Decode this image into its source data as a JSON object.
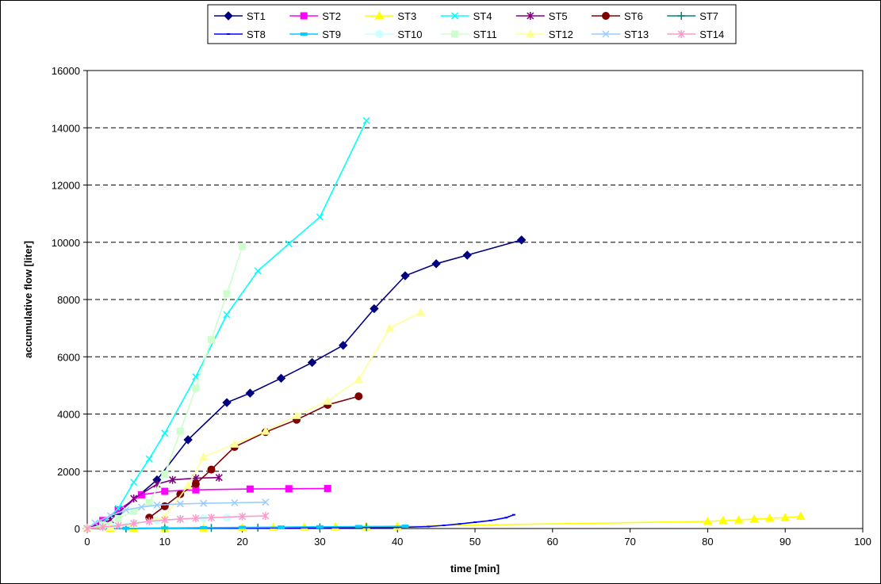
{
  "chart_data": {
    "type": "line",
    "title": "",
    "xlabel": "time [min]",
    "ylabel": "accumulative flow [liter]",
    "xlim": [
      0,
      100
    ],
    "ylim": [
      0,
      16000
    ],
    "x_ticks": [
      0,
      10,
      20,
      30,
      40,
      50,
      60,
      70,
      80,
      90,
      100
    ],
    "y_ticks": [
      0,
      2000,
      4000,
      6000,
      8000,
      10000,
      12000,
      14000,
      16000
    ],
    "grid": "horizontal dashed",
    "legend_position": "top",
    "series": [
      {
        "name": "ST1",
        "color": "#000080",
        "marker": "diamond",
        "x": [
          0,
          2,
          4,
          9,
          13,
          18,
          21,
          25,
          29,
          33,
          37,
          41,
          45,
          49,
          56
        ],
        "y": [
          0,
          250,
          550,
          1700,
          3100,
          4400,
          4730,
          5250,
          5800,
          6400,
          7680,
          8830,
          9250,
          9550,
          10080
        ]
      },
      {
        "name": "ST2",
        "color": "#FF00FF",
        "marker": "square",
        "x": [
          0,
          2,
          4,
          7,
          10,
          14,
          21,
          26,
          31
        ],
        "y": [
          0,
          280,
          650,
          1180,
          1300,
          1350,
          1380,
          1390,
          1400
        ]
      },
      {
        "name": "ST3",
        "color": "#FFFF00",
        "marker": "triangle",
        "x": [
          0,
          3,
          6,
          10,
          15,
          20,
          24,
          28,
          32,
          36,
          40,
          80,
          82,
          84,
          86,
          88,
          90,
          92
        ],
        "y": [
          0,
          0,
          0,
          0,
          20,
          30,
          40,
          50,
          60,
          70,
          80,
          250,
          280,
          300,
          330,
          360,
          380,
          430
        ]
      },
      {
        "name": "ST4",
        "color": "#00FFFF",
        "marker": "x",
        "x": [
          0,
          2,
          4,
          6,
          8,
          10,
          14,
          18,
          22,
          26,
          30,
          36
        ],
        "y": [
          0,
          200,
          700,
          1620,
          2430,
          3330,
          5300,
          7470,
          9000,
          9950,
          10880,
          14250
        ]
      },
      {
        "name": "ST5",
        "color": "#800080",
        "marker": "star",
        "x": [
          0,
          3,
          6,
          9,
          11,
          14,
          17
        ],
        "y": [
          0,
          300,
          1050,
          1550,
          1700,
          1760,
          1780
        ]
      },
      {
        "name": "ST6",
        "color": "#800000",
        "marker": "circle",
        "x": [
          8,
          10,
          12,
          14,
          16,
          19,
          23,
          27,
          31,
          35
        ],
        "y": [
          380,
          780,
          1200,
          1560,
          2060,
          2850,
          3370,
          3800,
          4320,
          4620
        ]
      },
      {
        "name": "ST7",
        "color": "#008080",
        "marker": "plus",
        "x": [
          0,
          5,
          10,
          16,
          22,
          30,
          36
        ],
        "y": [
          0,
          0,
          10,
          20,
          30,
          40,
          50
        ]
      },
      {
        "name": "ST8",
        "color": "#0000FF",
        "marker": "dash",
        "x": [
          0,
          10,
          20,
          30,
          40,
          44,
          46,
          48,
          50,
          52,
          54,
          55
        ],
        "y": [
          0,
          10,
          20,
          30,
          40,
          70,
          110,
          160,
          220,
          280,
          380,
          480
        ]
      },
      {
        "name": "ST9",
        "color": "#00CCFF",
        "marker": "bar",
        "x": [
          0,
          5,
          10,
          15,
          20,
          25,
          30,
          35,
          41
        ],
        "y": [
          0,
          10,
          20,
          30,
          40,
          50,
          60,
          70,
          80
        ]
      },
      {
        "name": "ST10",
        "color": "#CCFFFF",
        "marker": "circle",
        "x": [
          0,
          3,
          6,
          9,
          12,
          15,
          18
        ],
        "y": [
          0,
          100,
          200,
          280,
          330,
          360,
          380
        ]
      },
      {
        "name": "ST11",
        "color": "#CCFFCC",
        "marker": "square",
        "x": [
          0,
          2,
          4,
          6,
          8,
          10,
          12,
          14,
          16,
          18,
          20
        ],
        "y": [
          0,
          120,
          350,
          600,
          900,
          1900,
          3400,
          4900,
          6600,
          8200,
          9850
        ]
      },
      {
        "name": "ST12",
        "color": "#FFFF99",
        "marker": "triangle",
        "x": [
          0,
          3,
          6,
          10,
          13,
          15,
          19,
          23,
          27,
          31,
          35,
          39,
          43
        ],
        "y": [
          0,
          50,
          150,
          400,
          1500,
          2500,
          2950,
          3400,
          3950,
          4450,
          5200,
          7000,
          7550
        ]
      },
      {
        "name": "ST13",
        "color": "#99CCFF",
        "marker": "x",
        "x": [
          0,
          1,
          3,
          5,
          7,
          9,
          12,
          15,
          19,
          23
        ],
        "y": [
          0,
          200,
          450,
          650,
          750,
          820,
          860,
          880,
          900,
          920
        ]
      },
      {
        "name": "ST14",
        "color": "#FF99CC",
        "marker": "star",
        "x": [
          0,
          2,
          4,
          6,
          8,
          10,
          12,
          14,
          16,
          20,
          23
        ],
        "y": [
          0,
          50,
          100,
          180,
          250,
          300,
          330,
          360,
          380,
          420,
          440
        ]
      }
    ]
  }
}
